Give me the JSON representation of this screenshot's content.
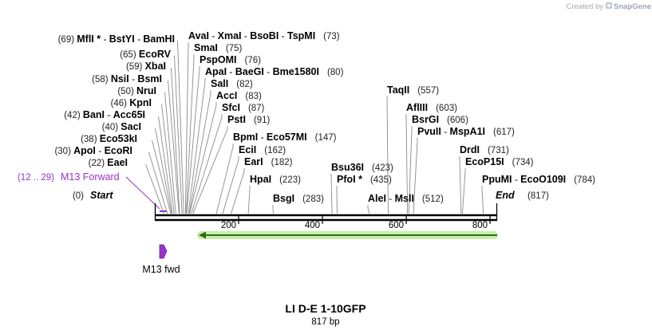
{
  "branding": {
    "created_by": "Created by",
    "product": "SnapGene"
  },
  "map": {
    "title": "LI D-E 1-10GFP",
    "length_label": "817 bp",
    "sequence_length": 817,
    "ticks": [
      "200",
      "400",
      "600",
      "800"
    ],
    "ends": {
      "start": {
        "name": "Start",
        "pos": "(0)"
      },
      "end": {
        "name": "End",
        "pos": "(817)"
      }
    },
    "primer": {
      "name": "M13 Forward",
      "range": "(12 .. 29)",
      "short_label": "M13 fwd",
      "color": "#9933cc"
    },
    "orf": {
      "color": "#2f6d1a",
      "glow": "#c9f0a8"
    },
    "left_sites": [
      {
        "pos": "(69)",
        "names": [
          "MflI *",
          "BstYI",
          "BamHI"
        ]
      },
      {
        "pos": "(65)",
        "names": [
          "EcoRV"
        ]
      },
      {
        "pos": "(59)",
        "names": [
          "XbaI"
        ]
      },
      {
        "pos": "(58)",
        "names": [
          "NsiI",
          "BsmI"
        ]
      },
      {
        "pos": "(50)",
        "names": [
          "NruI"
        ]
      },
      {
        "pos": "(46)",
        "names": [
          "KpnI"
        ]
      },
      {
        "pos": "(42)",
        "names": [
          "BanI",
          "Acc65I"
        ]
      },
      {
        "pos": "(40)",
        "names": [
          "SacI"
        ]
      },
      {
        "pos": "(38)",
        "names": [
          "Eco53kI"
        ]
      },
      {
        "pos": "(30)",
        "names": [
          "ApoI",
          "EcoRI"
        ]
      },
      {
        "pos": "(22)",
        "names": [
          "EaeI"
        ]
      }
    ],
    "right_sites": [
      {
        "pos": "(73)",
        "names": [
          "AvaI",
          "XmaI",
          "BsoBI",
          "TspMI"
        ]
      },
      {
        "pos": "(75)",
        "names": [
          "SmaI"
        ]
      },
      {
        "pos": "(76)",
        "names": [
          "PspOMI"
        ]
      },
      {
        "pos": "(80)",
        "names": [
          "ApaI",
          "BaeGI",
          "Bme1580I"
        ]
      },
      {
        "pos": "(82)",
        "names": [
          "SalI"
        ]
      },
      {
        "pos": "(83)",
        "names": [
          "AccI"
        ]
      },
      {
        "pos": "(87)",
        "names": [
          "SfcI"
        ]
      },
      {
        "pos": "(91)",
        "names": [
          "PstI"
        ]
      },
      {
        "pos": "(147)",
        "names": [
          "BpmI",
          "Eco57MI"
        ]
      },
      {
        "pos": "(162)",
        "names": [
          "EciI"
        ]
      },
      {
        "pos": "(182)",
        "names": [
          "EarI"
        ]
      },
      {
        "pos": "(223)",
        "names": [
          "HpaI"
        ]
      },
      {
        "pos": "(283)",
        "names": [
          "BsgI"
        ]
      },
      {
        "pos": "(423)",
        "names": [
          "Bsu36I"
        ]
      },
      {
        "pos": "(435)",
        "names": [
          "PfoI *"
        ]
      },
      {
        "pos": "(512)",
        "names": [
          "AleI",
          "MslI"
        ]
      },
      {
        "pos": "(557)",
        "names": [
          "TaqII"
        ]
      },
      {
        "pos": "(603)",
        "names": [
          "AflIII"
        ]
      },
      {
        "pos": "(606)",
        "names": [
          "BsrGI"
        ]
      },
      {
        "pos": "(617)",
        "names": [
          "PvuII",
          "MspA1I"
        ]
      },
      {
        "pos": "(731)",
        "names": [
          "DrdI"
        ]
      },
      {
        "pos": "(734)",
        "names": [
          "EcoP15I"
        ]
      },
      {
        "pos": "(784)",
        "names": [
          "PpuMI",
          "EcoO109I"
        ]
      }
    ]
  }
}
